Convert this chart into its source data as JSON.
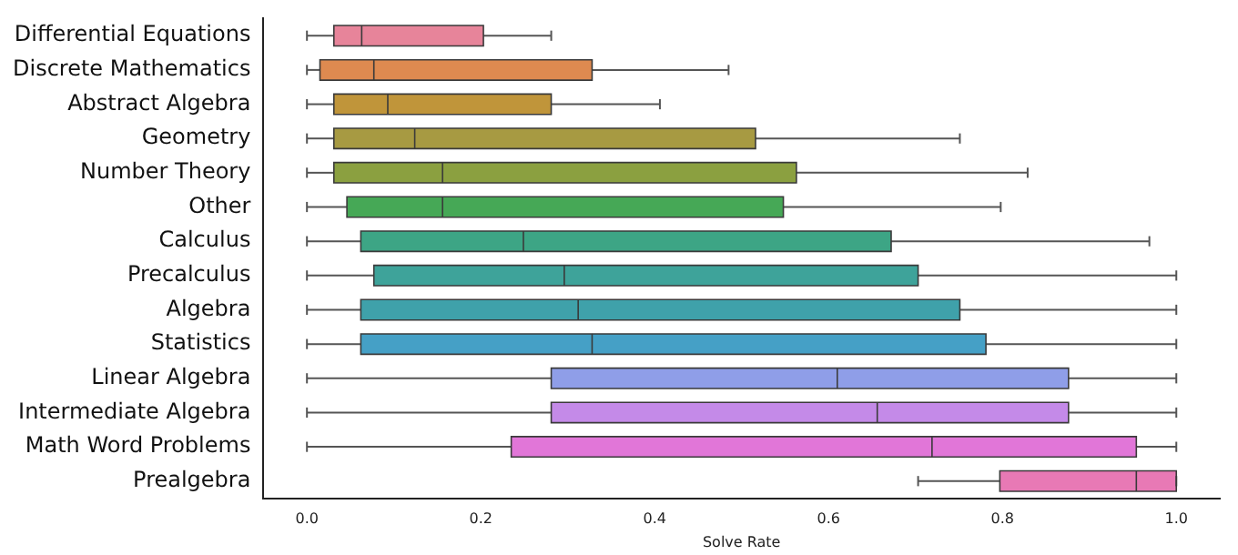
{
  "chart_data": {
    "type": "box",
    "orientation": "horizontal",
    "xlabel": "Solve Rate",
    "categories": [
      "Differential Equations",
      "Discrete Mathematics",
      "Abstract Algebra",
      "Geometry",
      "Number Theory",
      "Other",
      "Calculus",
      "Precalculus",
      "Algebra",
      "Statistics",
      "Linear Algebra",
      "Intermediate Algebra",
      "Math Word Problems",
      "Prealgebra"
    ],
    "colors": [
      "#e7849a",
      "#de8a50",
      "#c0953a",
      "#a79a42",
      "#8ba040",
      "#46a856",
      "#3da585",
      "#3ea39a",
      "#3fa1aa",
      "#45a0c6",
      "#8f9ee8",
      "#c48ae8",
      "#e176d8",
      "#e879b5"
    ],
    "boxes": [
      {
        "low": 0,
        "q1": 0.031,
        "median": 0.063,
        "q3": 0.203,
        "high": 0.281
      },
      {
        "low": 0,
        "q1": 0.015,
        "median": 0.077,
        "q3": 0.328,
        "high": 0.485
      },
      {
        "low": 0,
        "q1": 0.031,
        "median": 0.093,
        "q3": 0.281,
        "high": 0.406
      },
      {
        "low": 0,
        "q1": 0.031,
        "median": 0.124,
        "q3": 0.516,
        "high": 0.751
      },
      {
        "low": 0,
        "q1": 0.031,
        "median": 0.156,
        "q3": 0.563,
        "high": 0.829
      },
      {
        "low": 0,
        "q1": 0.046,
        "median": 0.156,
        "q3": 0.548,
        "high": 0.798
      },
      {
        "low": 0,
        "q1": 0.062,
        "median": 0.249,
        "q3": 0.672,
        "high": 0.969
      },
      {
        "low": 0,
        "q1": 0.077,
        "median": 0.296,
        "q3": 0.703,
        "high": 1.0
      },
      {
        "low": 0,
        "q1": 0.062,
        "median": 0.312,
        "q3": 0.751,
        "high": 1.0
      },
      {
        "low": 0,
        "q1": 0.062,
        "median": 0.328,
        "q3": 0.781,
        "high": 1.0
      },
      {
        "low": 0,
        "q1": 0.281,
        "median": 0.61,
        "q3": 0.876,
        "high": 1.0
      },
      {
        "low": 0,
        "q1": 0.281,
        "median": 0.656,
        "q3": 0.876,
        "high": 1.0
      },
      {
        "low": 0,
        "q1": 0.235,
        "median": 0.719,
        "q3": 0.954,
        "high": 1.0
      },
      {
        "low": 0.703,
        "q1": 0.797,
        "median": 0.954,
        "q3": 1.0,
        "high": 1.0
      }
    ],
    "xlim": [
      -0.05,
      1.05
    ],
    "xticks": [
      {
        "value": 0,
        "label": "0.0"
      },
      {
        "value": 0.2,
        "label": "0.2"
      },
      {
        "value": 0.4,
        "label": "0.4"
      },
      {
        "value": 0.6,
        "label": "0.6"
      },
      {
        "value": 0.8,
        "label": "0.8"
      },
      {
        "value": 1,
        "label": "1.0"
      }
    ],
    "grid": false,
    "legend": false
  }
}
